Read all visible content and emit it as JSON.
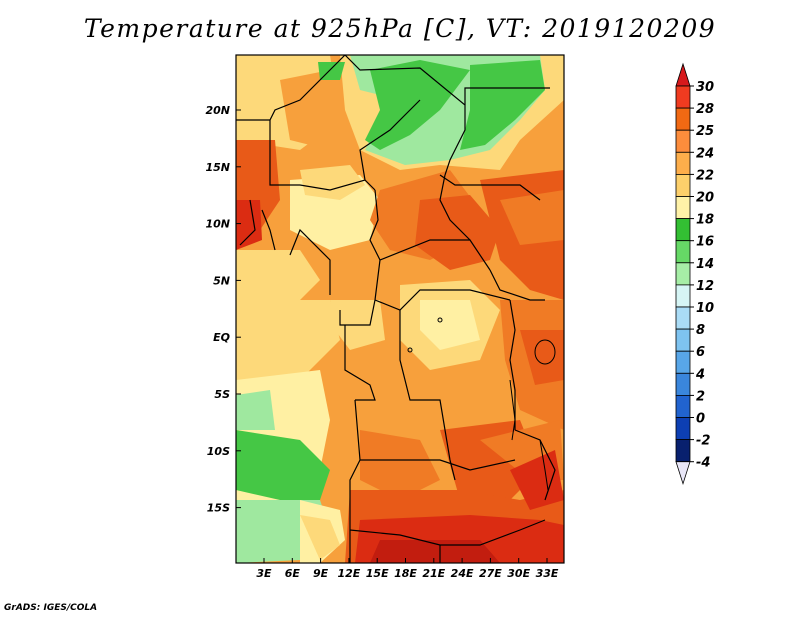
{
  "title": "Temperature at 925hPa [C], VT: 2019120209",
  "footer": "GrADS: IGES/COLA",
  "map": {
    "lat_labels": [
      "20N",
      "15N",
      "10N",
      "5N",
      "EQ",
      "5S",
      "10S",
      "15S"
    ],
    "lon_labels": [
      "3E",
      "6E",
      "9E",
      "12E",
      "15E",
      "18E",
      "21E",
      "24E",
      "27E",
      "30E",
      "33E"
    ],
    "lat_range": [
      -20,
      24.5
    ],
    "lon_range": [
      0.2,
      34.8
    ]
  },
  "colorbar": {
    "labels": [
      "30",
      "28",
      "25",
      "24",
      "22",
      "20",
      "18",
      "16",
      "14",
      "12",
      "10",
      "8",
      "6",
      "4",
      "2",
      "0",
      "-2",
      "-4"
    ],
    "colors": [
      "#d7191c",
      "#f03b20",
      "#f16913",
      "#fd8d3c",
      "#fdae4b",
      "#fdd06b",
      "#fff2a8",
      "#33bf33",
      "#66d966",
      "#a6eea6",
      "#d6f5f5",
      "#aadcf6",
      "#7ec3f0",
      "#58a6e8",
      "#3a86dc",
      "#2163cf",
      "#0d3fb3",
      "#08206e"
    ]
  },
  "palette": {
    "green": "#45c745",
    "light_green": "#9fe89f",
    "pale_yellow": "#fff0a3",
    "yellow": "#fdd97a",
    "light_orange": "#fcbd5a",
    "orange": "#f7a03c",
    "dark_orange": "#f07b25",
    "red_orange": "#e85a18",
    "red": "#db2c12"
  }
}
